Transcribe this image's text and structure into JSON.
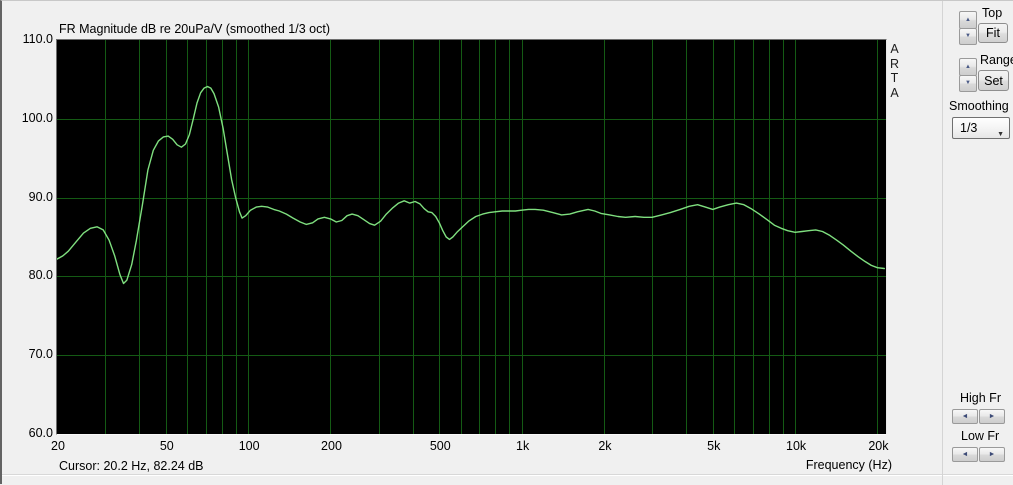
{
  "title": "FR Magnitude dB re 20uPa/V (smoothed 1/3 oct)",
  "watermark": "ARTA",
  "cursor_readout": "Cursor: 20.2 Hz, 82.24 dB",
  "controls": {
    "top_label": "Top",
    "fit_button": "Fit",
    "range_label": "Range",
    "set_button": "Set",
    "smoothing_label": "Smoothing",
    "smoothing_value": "1/3",
    "high_fr_label": "High Fr",
    "low_fr_label": "Low Fr"
  },
  "icons": {
    "spinner_up": "▲",
    "spinner_down": "▼",
    "combo_arrow": "▼",
    "left_arrow": "◄",
    "right_arrow": "►"
  },
  "colors": {
    "plot_bg": "#000000",
    "grid": "#145a14",
    "curve": "#7fdf7f",
    "panel_bg": "#f0f0f0"
  },
  "chart_data": {
    "type": "line",
    "title": "FR Magnitude dB re 20uPa/V (smoothed 1/3 oct)",
    "xlabel": "Frequency (Hz)",
    "ylabel": "dB",
    "x_scale": "log",
    "xlim": [
      20,
      21500
    ],
    "ylim": [
      60,
      110
    ],
    "x_ticks": [
      [
        20,
        "20"
      ],
      [
        50,
        "50"
      ],
      [
        100,
        "100"
      ],
      [
        200,
        "200"
      ],
      [
        500,
        "500"
      ],
      [
        1000,
        "1k"
      ],
      [
        2000,
        "2k"
      ],
      [
        5000,
        "5k"
      ],
      [
        10000,
        "10k"
      ],
      [
        20000,
        "20k"
      ]
    ],
    "y_ticks": [
      [
        110,
        "110.0"
      ],
      [
        100,
        "100.0"
      ],
      [
        90,
        "90.0"
      ],
      [
        80,
        "80.0"
      ],
      [
        70,
        "70.0"
      ],
      [
        60,
        "60.0"
      ]
    ],
    "y_gridlines": [
      100,
      90,
      80,
      70
    ],
    "grid": true,
    "legend": false,
    "series": [
      {
        "name": "FR magnitude (smoothed 1/3 oct)",
        "points": [
          [
            20,
            82.2
          ],
          [
            21,
            82.6
          ],
          [
            22,
            83.2
          ],
          [
            23.5,
            84.4
          ],
          [
            25,
            85.5
          ],
          [
            26.5,
            86.1
          ],
          [
            28,
            86.3
          ],
          [
            29.5,
            85.9
          ],
          [
            31,
            84.6
          ],
          [
            32.5,
            82.6
          ],
          [
            34,
            80.2
          ],
          [
            35,
            79.1
          ],
          [
            36,
            79.5
          ],
          [
            37.5,
            81.5
          ],
          [
            39,
            84.5
          ],
          [
            41,
            89.0
          ],
          [
            43,
            93.5
          ],
          [
            45,
            96.0
          ],
          [
            47,
            97.2
          ],
          [
            49,
            97.7
          ],
          [
            51,
            97.8
          ],
          [
            53,
            97.4
          ],
          [
            55,
            96.7
          ],
          [
            57,
            96.4
          ],
          [
            59,
            96.8
          ],
          [
            61,
            98.0
          ],
          [
            63,
            100.0
          ],
          [
            65,
            102.0
          ],
          [
            67,
            103.3
          ],
          [
            69,
            103.9
          ],
          [
            71,
            104.1
          ],
          [
            73,
            103.9
          ],
          [
            75,
            103.2
          ],
          [
            78,
            101.5
          ],
          [
            81,
            98.8
          ],
          [
            84,
            95.5
          ],
          [
            87,
            92.3
          ],
          [
            90,
            90.0
          ],
          [
            93,
            88.2
          ],
          [
            95,
            87.4
          ],
          [
            98,
            87.7
          ],
          [
            102,
            88.4
          ],
          [
            107,
            88.8
          ],
          [
            112,
            88.9
          ],
          [
            118,
            88.8
          ],
          [
            124,
            88.5
          ],
          [
            130,
            88.3
          ],
          [
            138,
            87.9
          ],
          [
            146,
            87.4
          ],
          [
            155,
            86.9
          ],
          [
            163,
            86.6
          ],
          [
            172,
            86.8
          ],
          [
            180,
            87.3
          ],
          [
            190,
            87.5
          ],
          [
            200,
            87.3
          ],
          [
            210,
            86.9
          ],
          [
            220,
            87.1
          ],
          [
            230,
            87.7
          ],
          [
            240,
            87.9
          ],
          [
            252,
            87.7
          ],
          [
            265,
            87.2
          ],
          [
            278,
            86.7
          ],
          [
            290,
            86.5
          ],
          [
            305,
            87.0
          ],
          [
            320,
            87.9
          ],
          [
            338,
            88.7
          ],
          [
            355,
            89.3
          ],
          [
            372,
            89.6
          ],
          [
            390,
            89.3
          ],
          [
            408,
            89.5
          ],
          [
            425,
            89.2
          ],
          [
            440,
            88.6
          ],
          [
            455,
            88.2
          ],
          [
            470,
            88.1
          ],
          [
            485,
            87.6
          ],
          [
            500,
            86.8
          ],
          [
            515,
            85.8
          ],
          [
            530,
            85.0
          ],
          [
            545,
            84.7
          ],
          [
            560,
            85.0
          ],
          [
            580,
            85.6
          ],
          [
            605,
            86.2
          ],
          [
            640,
            87.0
          ],
          [
            680,
            87.6
          ],
          [
            720,
            87.9
          ],
          [
            760,
            88.1
          ],
          [
            800,
            88.2
          ],
          [
            850,
            88.3
          ],
          [
            900,
            88.3
          ],
          [
            950,
            88.3
          ],
          [
            1000,
            88.4
          ],
          [
            1060,
            88.5
          ],
          [
            1120,
            88.5
          ],
          [
            1200,
            88.4
          ],
          [
            1300,
            88.1
          ],
          [
            1400,
            87.8
          ],
          [
            1500,
            87.9
          ],
          [
            1600,
            88.2
          ],
          [
            1750,
            88.5
          ],
          [
            1850,
            88.3
          ],
          [
            1950,
            88.0
          ],
          [
            2100,
            87.8
          ],
          [
            2250,
            87.6
          ],
          [
            2400,
            87.5
          ],
          [
            2600,
            87.6
          ],
          [
            2800,
            87.5
          ],
          [
            3000,
            87.5
          ],
          [
            3250,
            87.8
          ],
          [
            3500,
            88.1
          ],
          [
            3800,
            88.5
          ],
          [
            4100,
            88.9
          ],
          [
            4400,
            89.1
          ],
          [
            4700,
            88.8
          ],
          [
            5000,
            88.5
          ],
          [
            5300,
            88.8
          ],
          [
            5700,
            89.1
          ],
          [
            6100,
            89.3
          ],
          [
            6500,
            89.1
          ],
          [
            6900,
            88.6
          ],
          [
            7400,
            87.9
          ],
          [
            7900,
            87.2
          ],
          [
            8400,
            86.5
          ],
          [
            8900,
            86.1
          ],
          [
            9400,
            85.8
          ],
          [
            10000,
            85.6
          ],
          [
            10600,
            85.7
          ],
          [
            11200,
            85.8
          ],
          [
            11900,
            85.9
          ],
          [
            12600,
            85.7
          ],
          [
            13400,
            85.2
          ],
          [
            14200,
            84.6
          ],
          [
            15000,
            84.0
          ],
          [
            16000,
            83.2
          ],
          [
            17000,
            82.5
          ],
          [
            18000,
            81.9
          ],
          [
            19000,
            81.4
          ],
          [
            20000,
            81.1
          ],
          [
            21200,
            81.0
          ]
        ]
      }
    ]
  }
}
